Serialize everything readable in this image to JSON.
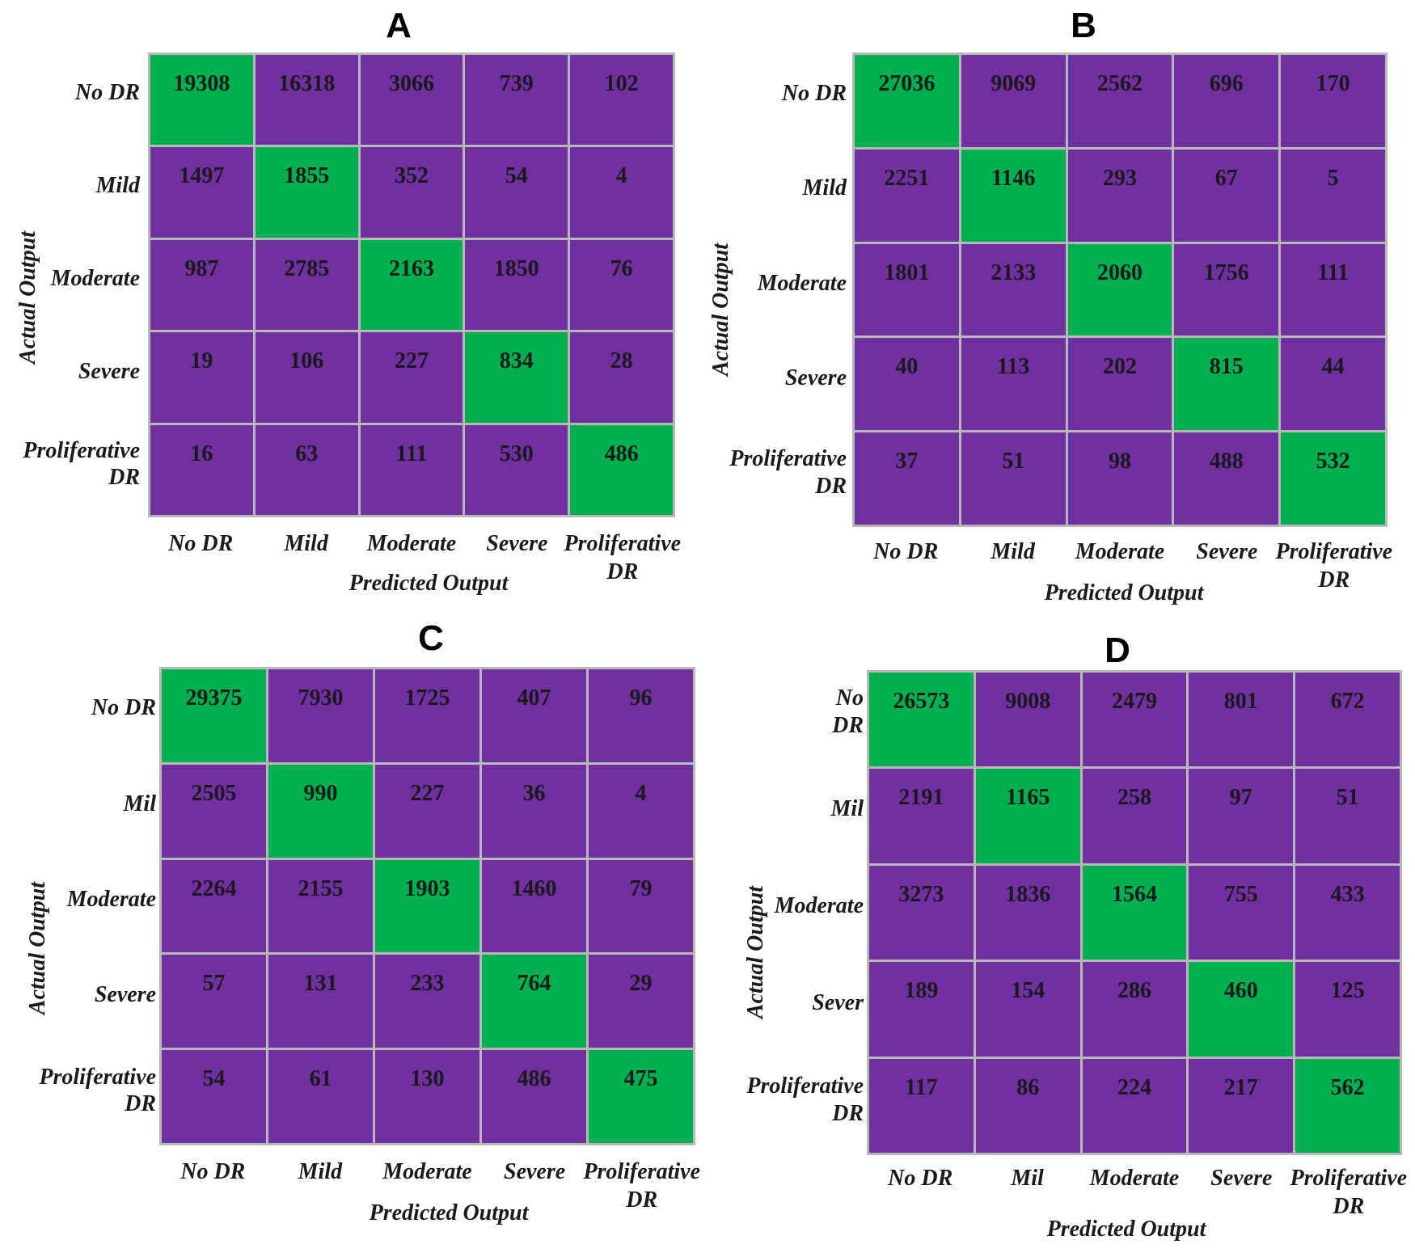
{
  "chart_data": [
    {
      "type": "heatmap",
      "title": "A",
      "xlabel": "Predicted Output",
      "ylabel": "Actual Output",
      "x_categories": [
        "No DR",
        "Mild",
        "Moderate",
        "Severe",
        "Proliferative\nDR"
      ],
      "y_categories": [
        "No DR",
        "Mild",
        "Moderate",
        "Severe",
        "Proliferative\nDR"
      ],
      "values": [
        [
          19308,
          16318,
          3066,
          739,
          102
        ],
        [
          1497,
          1855,
          352,
          54,
          4
        ],
        [
          987,
          2785,
          2163,
          1850,
          76
        ],
        [
          19,
          106,
          227,
          834,
          28
        ],
        [
          16,
          63,
          111,
          530,
          486
        ]
      ]
    },
    {
      "type": "heatmap",
      "title": "B",
      "xlabel": "Predicted Output",
      "ylabel": "Actual Output",
      "x_categories": [
        "No DR",
        "Mild",
        "Moderate",
        "Severe",
        "Proliferative\nDR"
      ],
      "y_categories": [
        "No DR",
        "Mild",
        "Moderate",
        "Severe",
        "Proliferative\nDR"
      ],
      "values": [
        [
          27036,
          9069,
          2562,
          696,
          170
        ],
        [
          2251,
          1146,
          293,
          67,
          5
        ],
        [
          1801,
          2133,
          2060,
          1756,
          111
        ],
        [
          40,
          113,
          202,
          815,
          44
        ],
        [
          37,
          51,
          98,
          488,
          532
        ]
      ]
    },
    {
      "type": "heatmap",
      "title": "C",
      "xlabel": "Predicted Output",
      "ylabel": "Actual Output",
      "x_categories": [
        "No DR",
        "Mild",
        "Moderate",
        "Severe",
        "Proliferative\nDR"
      ],
      "y_categories": [
        "No DR",
        "Mil",
        "Moderate",
        "Severe",
        "Proliferative\nDR"
      ],
      "values": [
        [
          29375,
          7930,
          1725,
          407,
          96
        ],
        [
          2505,
          990,
          227,
          36,
          4
        ],
        [
          2264,
          2155,
          1903,
          1460,
          79
        ],
        [
          57,
          131,
          233,
          764,
          29
        ],
        [
          54,
          61,
          130,
          486,
          475
        ]
      ]
    },
    {
      "type": "heatmap",
      "title": "D",
      "xlabel": "Predicted Output",
      "ylabel": "Actual Output",
      "x_categories": [
        "No DR",
        "Mil",
        "Moderate",
        "Severe",
        "Proliferative\nDR"
      ],
      "y_categories": [
        "No\nDR",
        "Mil",
        "Moderate",
        "Sever",
        "Proliferative\nDR"
      ],
      "values": [
        [
          26573,
          9008,
          2479,
          801,
          672
        ],
        [
          2191,
          1165,
          258,
          97,
          51
        ],
        [
          3273,
          1836,
          1564,
          755,
          433
        ],
        [
          189,
          154,
          286,
          460,
          125
        ],
        [
          117,
          86,
          224,
          217,
          562
        ]
      ]
    }
  ],
  "colors": {
    "diagonal": "#00b050",
    "off_diagonal": "#7030a0",
    "grid_line": "#b8b8b8"
  }
}
